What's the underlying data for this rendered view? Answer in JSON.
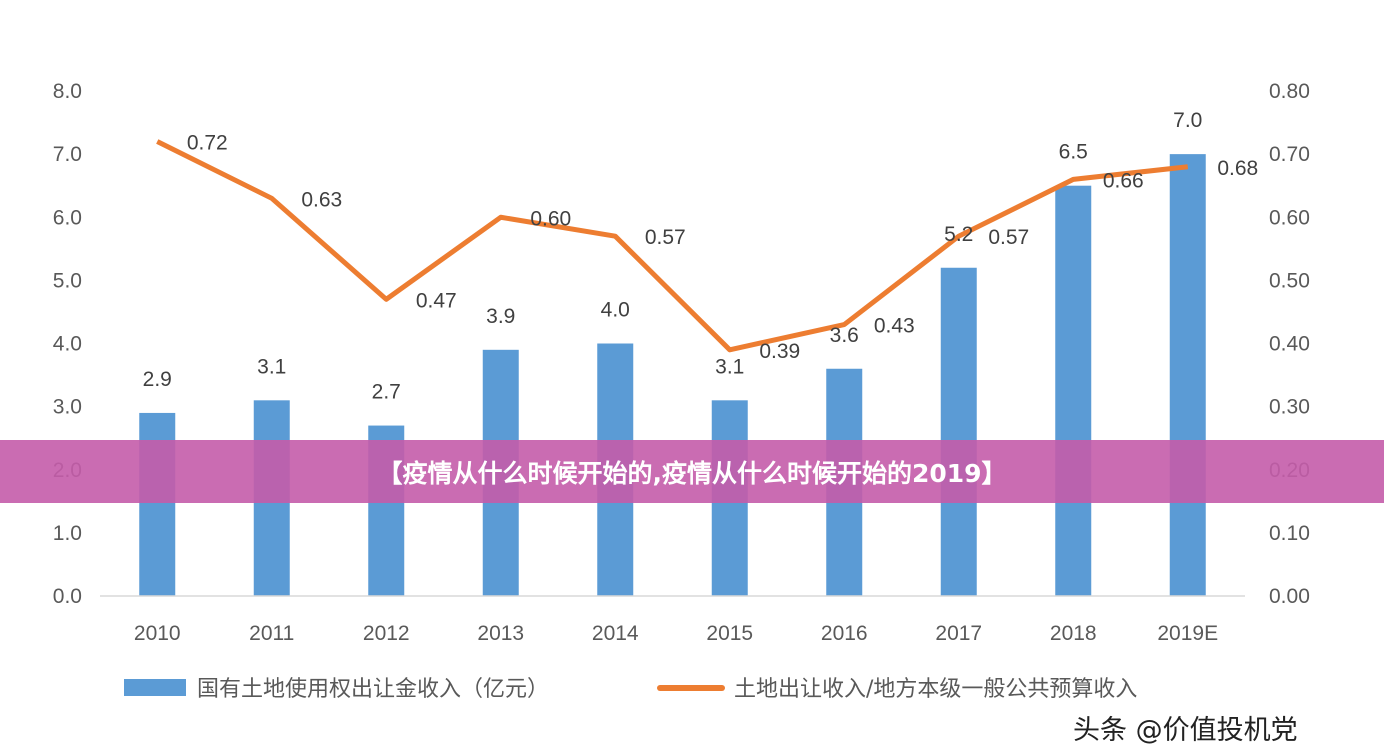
{
  "chart_data": {
    "type": "bar+line",
    "categories": [
      "2010",
      "2011",
      "2012",
      "2013",
      "2014",
      "2015",
      "2016",
      "2017",
      "2018",
      "2019E"
    ],
    "series": [
      {
        "name": "国有土地使用权出让金收入（亿元）",
        "type": "bar",
        "axis": "left",
        "color": "#5b9bd5",
        "values": [
          2.9,
          3.1,
          2.7,
          3.9,
          4.0,
          3.1,
          3.6,
          5.2,
          6.5,
          7.0
        ],
        "labels": [
          "2.9",
          "3.1",
          "2.7",
          "3.9",
          "4.0",
          "3.1",
          "3.6",
          "5.2",
          "6.5",
          "7.0"
        ]
      },
      {
        "name": "土地出让收入/地方本级一般公共预算收入",
        "type": "line",
        "axis": "right",
        "color": "#ed7d31",
        "values": [
          0.72,
          0.63,
          0.47,
          0.6,
          0.57,
          0.39,
          0.43,
          0.57,
          0.66,
          0.68
        ],
        "labels": [
          "0.72",
          "0.63",
          "0.47",
          "0.60",
          "0.57",
          "0.39",
          "0.43",
          "0.57",
          "0.66",
          "0.68"
        ]
      }
    ],
    "y_left": {
      "ylim": [
        0,
        8
      ],
      "ticks": [
        "0.0",
        "1.0",
        "2.0",
        "3.0",
        "4.0",
        "5.0",
        "6.0",
        "7.0",
        "8.0"
      ]
    },
    "y_right": {
      "ylim": [
        0,
        0.8
      ],
      "ticks": [
        "0.00",
        "0.10",
        "0.20",
        "0.30",
        "0.40",
        "0.50",
        "0.60",
        "0.70",
        "0.80"
      ]
    },
    "grid": false,
    "legend": "bottom"
  },
  "banner": {
    "text": "【疫情从什么时候开始的,疫情从什么时候开始的2019】",
    "color": "#c45caa"
  },
  "watermark": "头条 @价值投机党"
}
